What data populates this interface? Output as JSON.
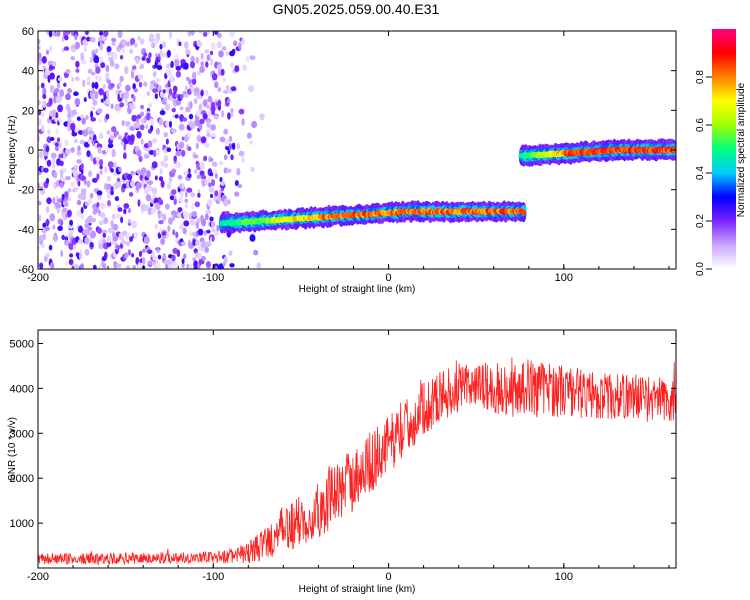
{
  "page_title": "GN05.2025.059.00.40.E31",
  "chart_data": [
    {
      "type": "heatmap",
      "title": "GN05.2025.059.00.40.E31",
      "xlabel": "Height of straight line (km)",
      "ylabel": "Frequency (Hz)",
      "xlim": [
        -200,
        164
      ],
      "ylim": [
        -60,
        60
      ],
      "x_ticks": [
        "-200",
        "-100",
        "0",
        "100"
      ],
      "y_ticks": [
        "60",
        "40",
        "20",
        "0",
        "-20",
        "-40",
        "-60"
      ],
      "colorbar": {
        "label": "Normalized spectral amplitude",
        "range": [
          0,
          1
        ],
        "ticks": [
          "0.0",
          "0.2",
          "0.4",
          "0.6",
          "0.8"
        ],
        "colors": [
          "#ffffff",
          "#c9a6ff",
          "#7a22ff",
          "#0000ff",
          "#00ccff",
          "#00ff80",
          "#a0ff00",
          "#ffff00",
          "#ff8000",
          "#ff0000",
          "#ff0080"
        ]
      },
      "features": [
        {
          "name": "noise field",
          "x_range": [
            -200,
            -72
          ],
          "freq_range": [
            -60,
            60
          ],
          "amplitude": 0.1
        },
        {
          "name": "band 1",
          "x_range": [
            -95,
            77
          ],
          "freq_start": -37,
          "freq_end": -31,
          "amplitude": 0.9
        },
        {
          "name": "band 2",
          "x_range": [
            76,
            164
          ],
          "freq_start": -3,
          "freq_end": 0,
          "amplitude": 0.95
        }
      ],
      "grid": false
    },
    {
      "type": "line",
      "xlabel": "Height of straight line (km)",
      "ylabel": "SNR (10 * v/v)",
      "xlim": [
        -200,
        164
      ],
      "ylim": [
        0,
        5300
      ],
      "x_ticks": [
        "-200",
        "-100",
        "0",
        "100"
      ],
      "y_ticks": [
        "5000",
        "4000",
        "3000",
        "2000",
        "1000"
      ],
      "series": [
        {
          "color": "#ff2020",
          "x": [
            -200,
            -180,
            -160,
            -140,
            -120,
            -100,
            -90,
            -80,
            -70,
            -60,
            -50,
            -40,
            -30,
            -20,
            -10,
            0,
            10,
            20,
            30,
            40,
            50,
            60,
            70,
            80,
            90,
            100,
            110,
            120,
            130,
            140,
            150,
            164
          ],
          "values": [
            200,
            200,
            210,
            220,
            230,
            240,
            260,
            330,
            550,
            850,
            1050,
            1300,
            1650,
            2000,
            2350,
            2750,
            3150,
            3550,
            3850,
            4000,
            4050,
            4000,
            3950,
            4050,
            4000,
            3950,
            3900,
            3850,
            3800,
            3850,
            3750,
            3700
          ],
          "spread": [
            120,
            120,
            130,
            130,
            130,
            140,
            160,
            250,
            380,
            520,
            600,
            650,
            700,
            700,
            700,
            650,
            620,
            600,
            580,
            560,
            560,
            560,
            600,
            620,
            620,
            600,
            560,
            540,
            520,
            520,
            520,
            500
          ]
        }
      ],
      "grid": false
    }
  ]
}
